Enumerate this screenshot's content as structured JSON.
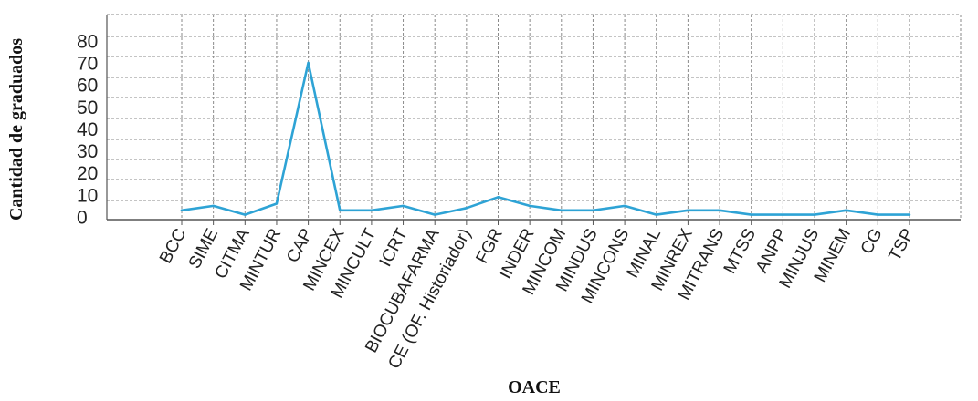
{
  "chart_data": {
    "type": "line",
    "title": "",
    "xlabel": "OACE",
    "ylabel": "Cantidad de graduados",
    "categories": [
      "BCC",
      "SIME",
      "CITMA",
      "MINTUR",
      "CAP",
      "MINCEX",
      "MINCULT",
      "ICRT",
      "BIOCUBAFARMA",
      "CE (OF. Historiador)",
      "FGR",
      "INDER",
      "MINCOM",
      "MINDUS",
      "MINCONS",
      "MINAL",
      "MINREX",
      "MITRANS",
      "MTSS",
      "ANPP",
      "MINJUS",
      "MINEM",
      "CG",
      "TSP"
    ],
    "series": [
      {
        "values": [
          3,
          5,
          1,
          6,
          70,
          3,
          3,
          5,
          1,
          4,
          9,
          5,
          3,
          3,
          5,
          1,
          3,
          3,
          1,
          1,
          1,
          3,
          1,
          1
        ]
      }
    ],
    "yticks": [
      0,
      10,
      20,
      30,
      40,
      50,
      60,
      70,
      80
    ],
    "ylim": [
      0,
      90
    ],
    "grid": true,
    "legend": "none",
    "line_color": "#2ea3d5"
  }
}
